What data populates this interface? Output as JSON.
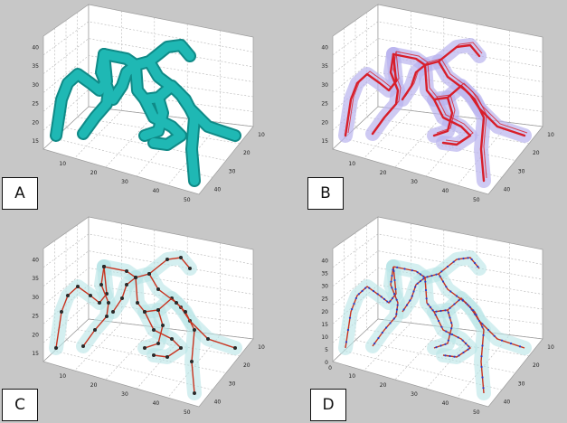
{
  "panels": [
    {
      "label": "A",
      "style": "solid",
      "z_ticks": [
        "40",
        "35",
        "30",
        "25",
        "20",
        "15"
      ],
      "x_ticks": [
        "10",
        "20",
        "30",
        "40",
        "50"
      ],
      "y_ticks": [
        "10",
        "20",
        "30",
        "40"
      ]
    },
    {
      "label": "B",
      "style": "skeleton",
      "z_ticks": [
        "40",
        "35",
        "30",
        "25",
        "20",
        "15"
      ],
      "x_ticks": [
        "10",
        "20",
        "30",
        "40",
        "50"
      ],
      "y_ticks": [
        "10",
        "20",
        "30",
        "40"
      ]
    },
    {
      "label": "C",
      "style": "graph",
      "z_ticks": [
        "40",
        "35",
        "30",
        "25",
        "20",
        "15"
      ],
      "x_ticks": [
        "10",
        "20",
        "30",
        "40",
        "50"
      ],
      "y_ticks": [
        "10",
        "20",
        "30",
        "40"
      ]
    },
    {
      "label": "D",
      "style": "spline",
      "z_ticks": [
        "40",
        "35",
        "30",
        "25",
        "20",
        "15",
        "10",
        "5",
        "0"
      ],
      "x_ticks": [
        "10",
        "20",
        "30",
        "40",
        "50"
      ],
      "y_ticks": [
        "10",
        "20",
        "30",
        "40"
      ],
      "x_zero": "0"
    }
  ],
  "colors": {
    "background": "#c7c7c7",
    "box_face": "#ffffff",
    "grid": "#b5b5b5",
    "solid_tube": "#1fb8b4",
    "solid_tube_dark": "#0f8a87",
    "translucent_purple": "#b9b4ee",
    "translucent_cyan": "#b8e4e6",
    "skeleton_red": "#d81e2a",
    "graph_edge": "#c8321e",
    "graph_node": "#2a2a2a",
    "spline_point": "#2b3cc8"
  }
}
